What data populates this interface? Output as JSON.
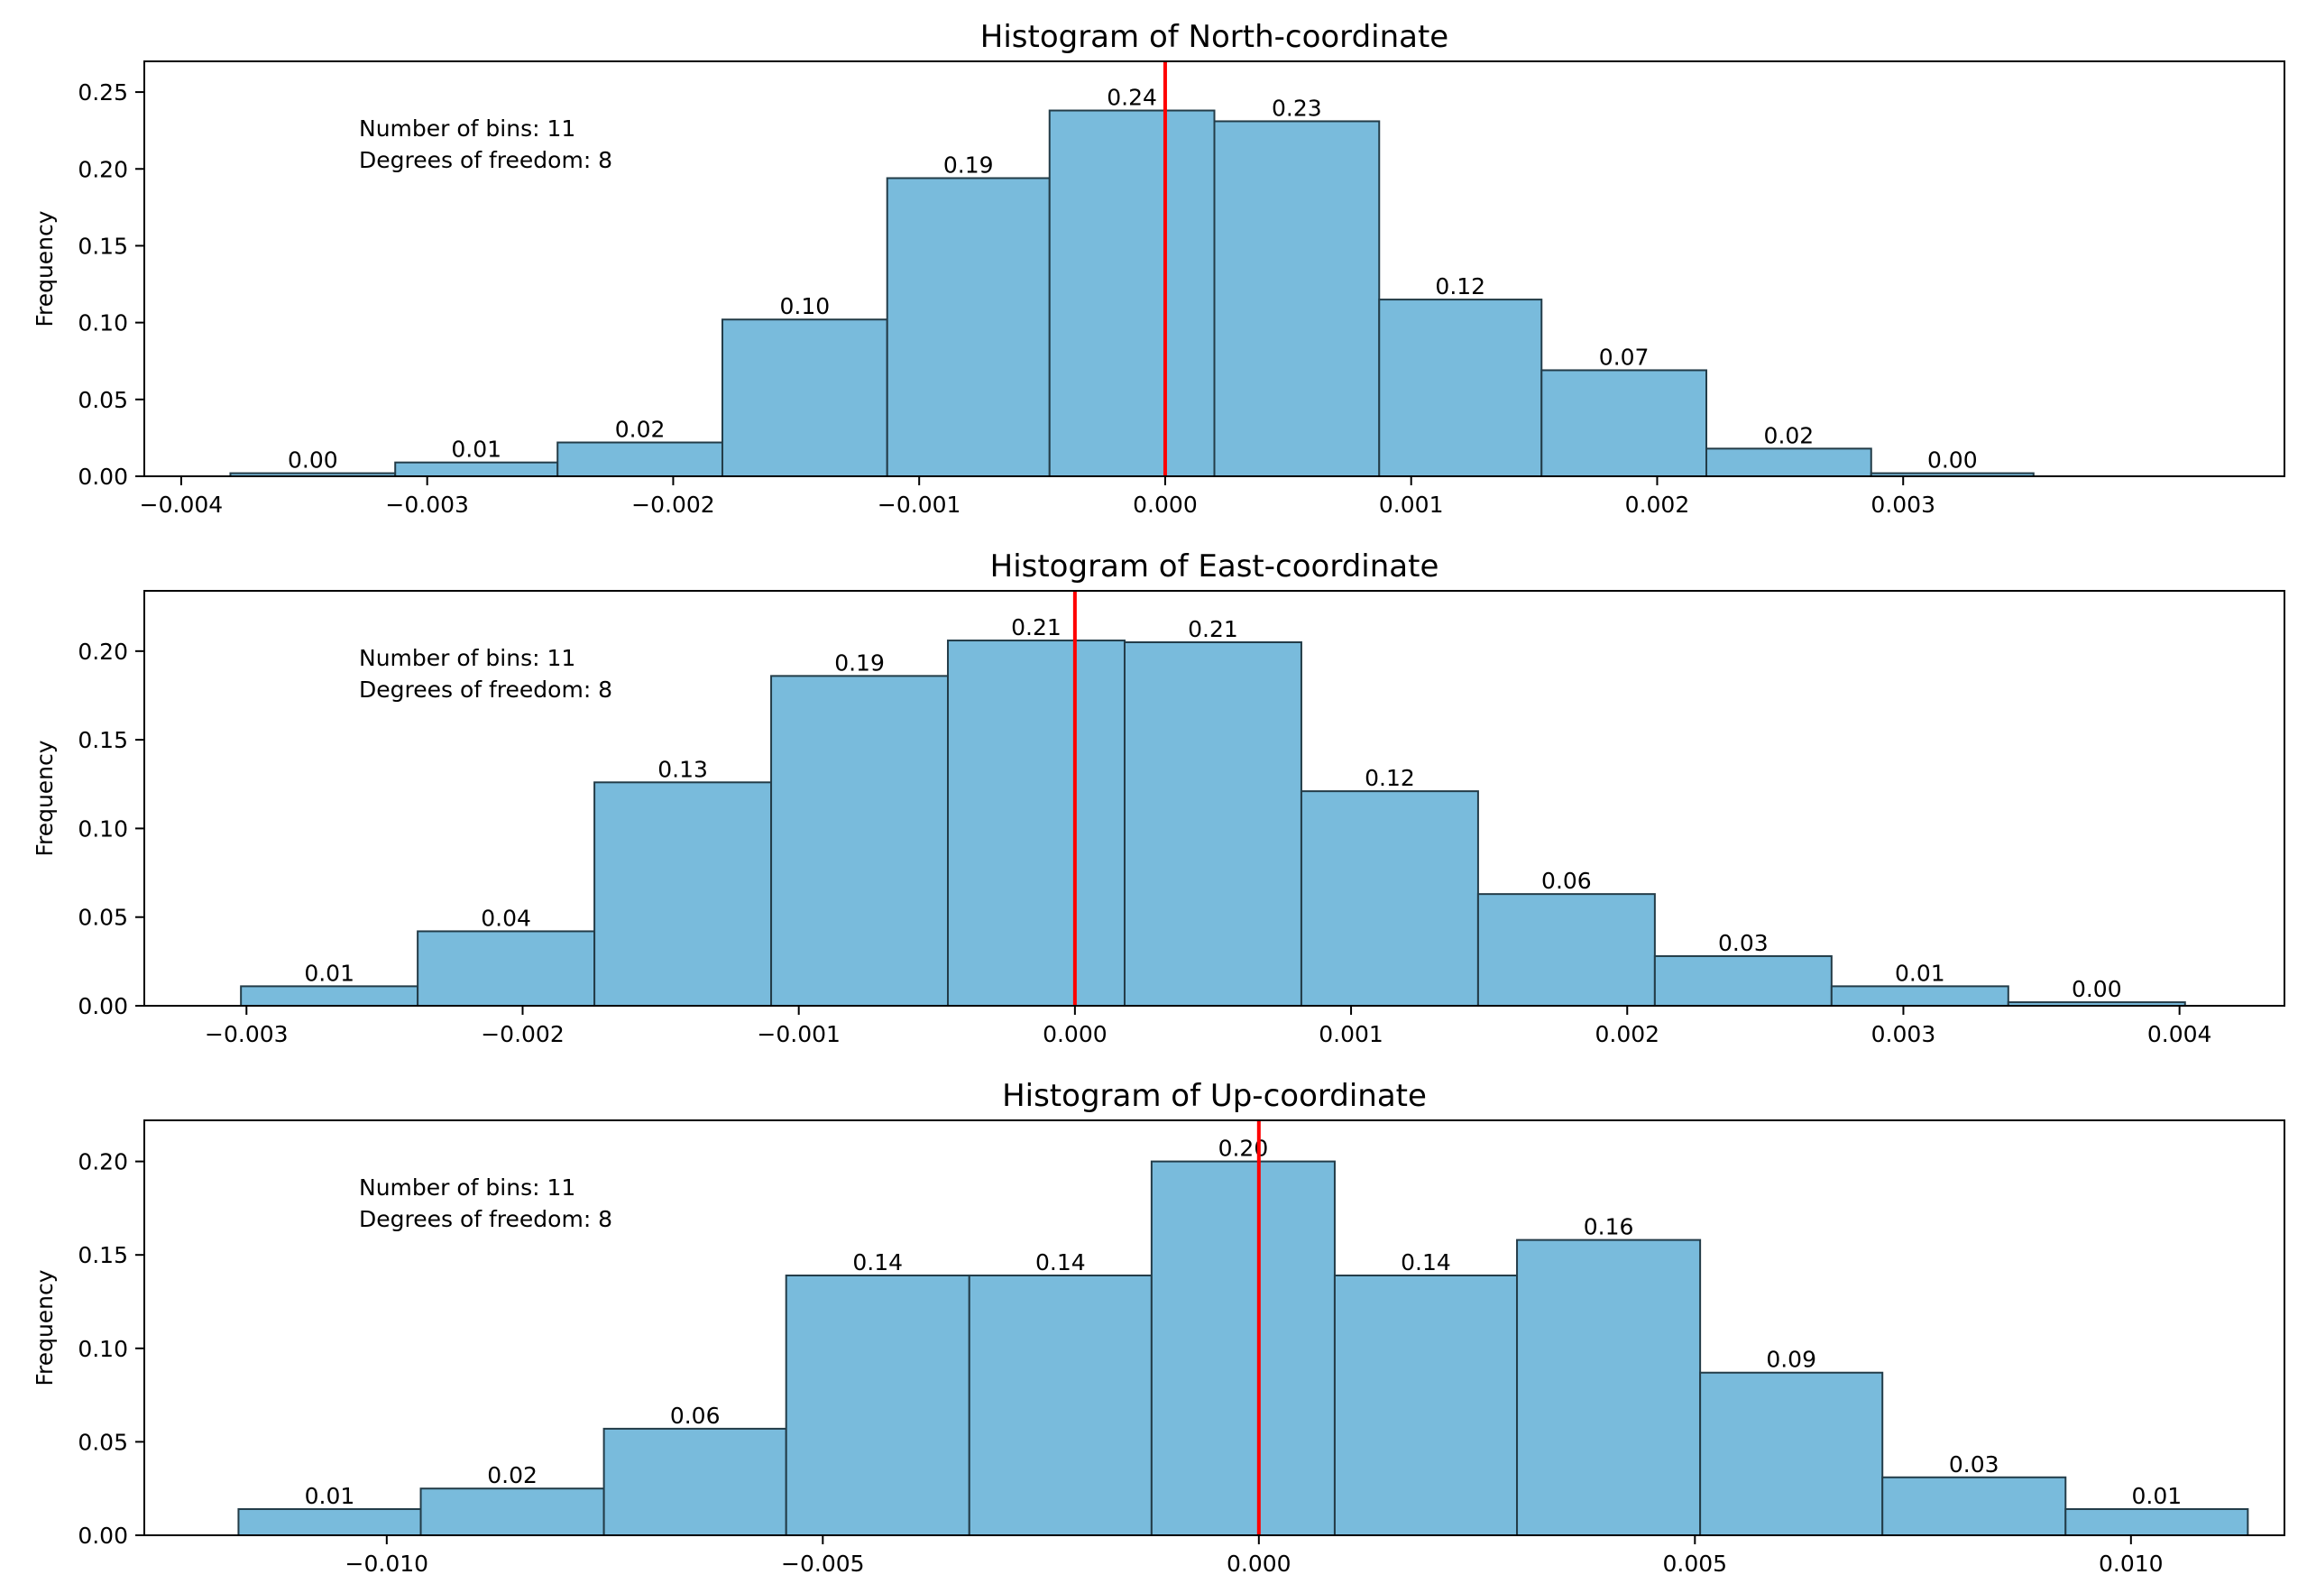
{
  "chart_data": [
    {
      "type": "bar",
      "title": "Histogram of North-coordinate",
      "xlabel": "",
      "ylabel": "Frequency",
      "xlim": [
        -0.00415,
        0.00455
      ],
      "ylim": [
        0,
        0.27
      ],
      "bin_edges": [
        -0.0038,
        -0.00313,
        -0.00247,
        -0.0018,
        -0.00113,
        -0.00047,
        0.0002,
        0.00087,
        0.00153,
        0.0022,
        0.00287,
        0.00353
      ],
      "values": [
        0.002,
        0.009,
        0.022,
        0.102,
        0.194,
        0.238,
        0.231,
        0.115,
        0.069,
        0.018,
        0.002
      ],
      "labels": [
        "0.00",
        "0.01",
        "0.02",
        "0.10",
        "0.19",
        "0.24",
        "0.23",
        "0.12",
        "0.07",
        "0.02",
        "0.00"
      ],
      "xticks": [
        -0.004,
        -0.003,
        -0.002,
        -0.001,
        0.0,
        0.001,
        0.002,
        0.003
      ],
      "xtick_labels": [
        "−0.004",
        "−0.003",
        "−0.002",
        "−0.001",
        "0.000",
        "0.001",
        "0.002",
        "0.003"
      ],
      "yticks": [
        0.0,
        0.05,
        0.1,
        0.15,
        0.2,
        0.25
      ],
      "ytick_labels": [
        "0.00",
        "0.05",
        "0.10",
        "0.15",
        "0.20",
        "0.25"
      ],
      "ref_line_x": 0.0,
      "annotation": [
        "Number of bins: 11",
        "Degrees of freedom: 8"
      ]
    },
    {
      "type": "bar",
      "title": "Histogram of East-coordinate",
      "xlabel": "",
      "ylabel": "Frequency",
      "xlim": [
        -0.00337,
        0.00438
      ],
      "ylim": [
        0,
        0.234
      ],
      "bin_edges": [
        -0.00302,
        -0.00238,
        -0.00174,
        -0.0011,
        -0.00046,
        0.00018,
        0.00082,
        0.00146,
        0.0021,
        0.00274,
        0.00338,
        0.00402
      ],
      "values": [
        0.011,
        0.042,
        0.126,
        0.186,
        0.206,
        0.205,
        0.121,
        0.063,
        0.028,
        0.011,
        0.002
      ],
      "labels": [
        "0.01",
        "0.04",
        "0.13",
        "0.19",
        "0.21",
        "0.21",
        "0.12",
        "0.06",
        "0.03",
        "0.01",
        "0.00"
      ],
      "xticks": [
        -0.003,
        -0.002,
        -0.001,
        0.0,
        0.001,
        0.002,
        0.003,
        0.004
      ],
      "xtick_labels": [
        "−0.003",
        "−0.002",
        "−0.001",
        "0.000",
        "0.001",
        "0.002",
        "0.003",
        "0.004"
      ],
      "yticks": [
        0.0,
        0.05,
        0.1,
        0.15,
        0.2
      ],
      "ytick_labels": [
        "0.00",
        "0.05",
        "0.10",
        "0.15",
        "0.20"
      ],
      "ref_line_x": 0.0,
      "annotation": [
        "Number of bins: 11",
        "Degrees of freedom: 8"
      ]
    },
    {
      "type": "bar",
      "title": "Histogram of Up-coordinate",
      "xlabel": "",
      "ylabel": "Frequency",
      "xlim": [
        -0.01278,
        0.01176
      ],
      "ylim": [
        0,
        0.222
      ],
      "bin_edges": [
        -0.0117,
        -0.00961,
        -0.00751,
        -0.00542,
        -0.00332,
        -0.00123,
        0.00087,
        0.00296,
        0.00506,
        0.00715,
        0.00925,
        0.01134
      ],
      "values": [
        0.014,
        0.025,
        0.057,
        0.139,
        0.139,
        0.2,
        0.139,
        0.158,
        0.087,
        0.031,
        0.014
      ],
      "labels": [
        "0.01",
        "0.02",
        "0.06",
        "0.14",
        "0.14",
        "0.20",
        "0.14",
        "0.16",
        "0.09",
        "0.03",
        "0.01"
      ],
      "xticks": [
        -0.01,
        -0.005,
        0.0,
        0.005,
        0.01
      ],
      "xtick_labels": [
        "−0.010",
        "−0.005",
        "0.000",
        "0.005",
        "0.010"
      ],
      "yticks": [
        0.0,
        0.05,
        0.1,
        0.15,
        0.2
      ],
      "ytick_labels": [
        "0.00",
        "0.05",
        "0.10",
        "0.15",
        "0.20"
      ],
      "ref_line_x": 0.0,
      "annotation": [
        "Number of bins: 11",
        "Degrees of freedom: 8"
      ]
    }
  ],
  "colors": {
    "bar_fill": "#79bbdc",
    "bar_edge": "#233c48",
    "ref_line": "#ff0000",
    "axis": "#000000"
  }
}
